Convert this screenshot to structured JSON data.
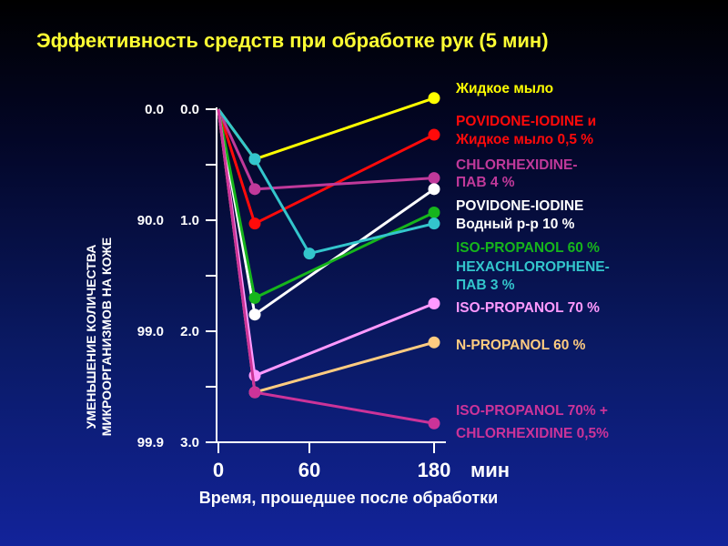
{
  "chart_data": {
    "type": "line",
    "title": "Эффективность средств при обработке рук (5 мин)",
    "title_color": "#ffff33",
    "xlabel": "Время, прошедшее после обработки",
    "x_unit": "мин",
    "ylabel_line1": "УМЕНЬШЕНИЕ КОЛИЧЕСТВА",
    "ylabel_line2": "МИКРООРГАНИЗМОВ НА КОЖЕ",
    "x": [
      0,
      5,
      60,
      180
    ],
    "xticks": [
      0,
      60,
      180
    ],
    "xtick_labels": [
      "0",
      "60",
      "180"
    ],
    "ylim": [
      0,
      3
    ],
    "yticks": [
      0,
      1,
      2,
      3
    ],
    "ytick_labels_log": [
      "0.0",
      "1.0",
      "2.0",
      "3.0"
    ],
    "ytick_labels_pct": [
      "0.0",
      "90.0",
      "99.0",
      "99.9"
    ],
    "series": [
      {
        "name": "Жидкое мыло",
        "legend_lines": [
          "Жидкое мыло"
        ],
        "color": "#ffff00",
        "x": [
          0,
          5,
          180
        ],
        "values": [
          0,
          0.45,
          -0.1
        ]
      },
      {
        "name": "POVIDONE-IODINE и Жидкое мыло 0,5 %",
        "legend_lines": [
          "POVIDONE-IODINE и",
          "Жидкое мыло 0,5 %"
        ],
        "color": "#ff0a0a",
        "x": [
          0,
          5,
          180
        ],
        "values": [
          0,
          1.03,
          0.23
        ]
      },
      {
        "name": "CHLORHEXIDINE-ПАВ 4 %",
        "legend_lines": [
          "CHLORHEXIDINE-",
          "ПАВ 4 %"
        ],
        "color": "#c0399a",
        "x": [
          0,
          5,
          180
        ],
        "values": [
          0,
          0.72,
          0.62
        ]
      },
      {
        "name": "POVIDONE-IODINE Водный р-р 10 %",
        "legend_lines": [
          "POVIDONE-IODINE",
          "Водный р-р 10 %"
        ],
        "color": "#ffffff",
        "x": [
          0,
          5,
          180
        ],
        "values": [
          0,
          1.85,
          0.72
        ]
      },
      {
        "name": "ISO-PROPANOL 60 %",
        "legend_lines": [
          "ISO-PROPANOL 60 %"
        ],
        "color": "#16b51c",
        "x": [
          0,
          5,
          180
        ],
        "values": [
          0,
          1.7,
          0.93
        ]
      },
      {
        "name": "HEXACHLOROPHENE-ПАВ 3 %",
        "legend_lines": [
          "HEXACHLOROPHENE-",
          "ПАВ 3 %"
        ],
        "color": "#33c6cc",
        "x": [
          0,
          5,
          60,
          180
        ],
        "values": [
          0,
          0.45,
          1.3,
          1.03
        ]
      },
      {
        "name": "ISO-PROPANOL 70 %",
        "legend_lines": [
          "ISO-PROPANOL 70 %"
        ],
        "color": "#ff99ff",
        "x": [
          0,
          5,
          180
        ],
        "values": [
          0,
          2.4,
          1.75
        ]
      },
      {
        "name": "N-PROPANOL 60 %",
        "legend_lines": [
          "N-PROPANOL 60 %"
        ],
        "color": "#ffcc80",
        "x": [
          0,
          5,
          180
        ],
        "values": [
          0,
          2.55,
          2.1
        ]
      },
      {
        "name": "ISO-PROPANOL 70% + CHLORHEXIDINE 0,5%",
        "legend_lines": [
          "ISO-PROPANOL 70% +",
          "CHLORHEXIDINE 0,5%"
        ],
        "color": "#cc3399",
        "x": [
          0,
          5,
          180
        ],
        "values": [
          0,
          2.55,
          2.83
        ]
      }
    ]
  }
}
